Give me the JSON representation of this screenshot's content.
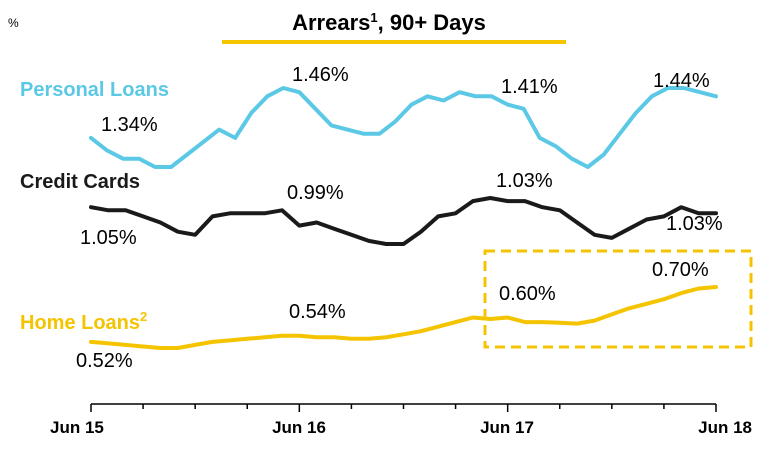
{
  "chart_data": {
    "type": "line",
    "title": "Arrears",
    "title_sup": "1",
    "title_rest": ", 90+ Days",
    "unit": "%",
    "xlabel": "",
    "ylabel": "",
    "x_ticks": [
      "Jun 15",
      "Jun 16",
      "Jun 17",
      "Jun 18"
    ],
    "grid": false,
    "legend": "inline-left",
    "series": [
      {
        "name": "Personal Loans",
        "color": "#5bc8e6",
        "values": [
          1.34,
          1.31,
          1.29,
          1.29,
          1.27,
          1.27,
          1.3,
          1.33,
          1.36,
          1.34,
          1.4,
          1.44,
          1.46,
          1.45,
          1.41,
          1.37,
          1.36,
          1.35,
          1.35,
          1.38,
          1.42,
          1.44,
          1.43,
          1.45,
          1.44,
          1.44,
          1.42,
          1.41,
          1.34,
          1.32,
          1.29,
          1.27,
          1.3,
          1.35,
          1.4,
          1.44,
          1.46,
          1.46,
          1.45,
          1.44
        ]
      },
      {
        "name": "Credit Cards",
        "color": "#1a1a1a",
        "values": [
          1.05,
          1.04,
          1.04,
          1.02,
          1.0,
          0.97,
          0.96,
          1.02,
          1.03,
          1.03,
          1.03,
          1.04,
          0.99,
          1.0,
          0.98,
          0.96,
          0.94,
          0.93,
          0.93,
          0.97,
          1.02,
          1.03,
          1.07,
          1.08,
          1.07,
          1.07,
          1.05,
          1.04,
          1.0,
          0.96,
          0.95,
          0.98,
          1.01,
          1.02,
          1.05,
          1.03,
          1.03
        ]
      },
      {
        "name": "Home Loans",
        "name_sup": "2",
        "color": "#f5c400",
        "values": [
          0.52,
          0.515,
          0.51,
          0.505,
          0.5,
          0.5,
          0.51,
          0.52,
          0.525,
          0.53,
          0.535,
          0.54,
          0.54,
          0.535,
          0.535,
          0.53,
          0.53,
          0.535,
          0.545,
          0.555,
          0.57,
          0.585,
          0.6,
          0.595,
          0.6,
          0.585,
          0.585,
          0.583,
          0.58,
          0.59,
          0.61,
          0.63,
          0.645,
          0.66,
          0.68,
          0.695,
          0.7
        ]
      }
    ],
    "data_labels": {
      "personal_loans": [
        "1.34%",
        "1.46%",
        "1.41%",
        "1.44%"
      ],
      "credit_cards": [
        "1.05%",
        "0.99%",
        "1.03%",
        "1.03%"
      ],
      "home_loans": [
        "0.52%",
        "0.54%",
        "0.60%",
        "0.70%"
      ]
    },
    "highlight_box": {
      "color": "#f5c400",
      "style": "dashed"
    }
  }
}
